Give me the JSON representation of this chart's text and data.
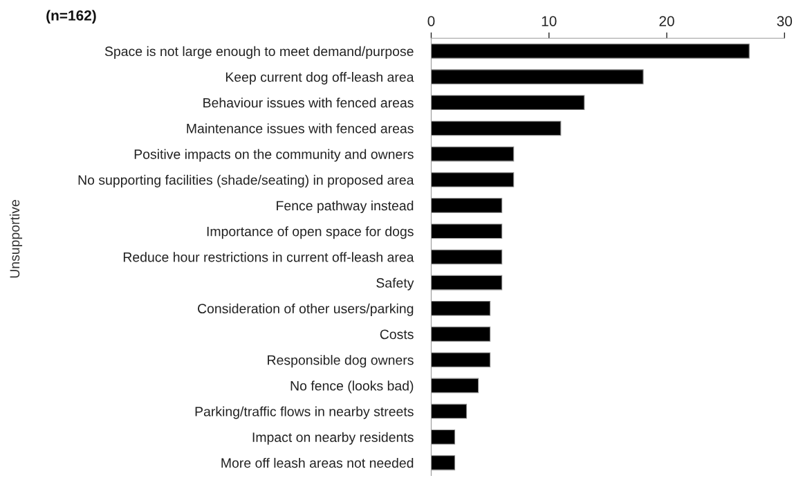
{
  "chart_data": {
    "type": "bar",
    "orientation": "horizontal",
    "ylabel": "Unsupportive",
    "annotations": [
      "(n=162)"
    ],
    "categories": [
      "Space is not large enough to meet demand/purpose",
      "Keep current dog off-leash area",
      "Behaviour issues with fenced areas",
      "Maintenance issues with fenced areas",
      "Positive impacts on the community and owners",
      "No supporting facilities (shade/seating) in proposed area",
      "Fence pathway instead",
      "Importance of open space for dogs",
      "Reduce hour restrictions in current off-leash area",
      "Safety",
      "Consideration of other users/parking",
      "Costs",
      "Responsible dog owners",
      "No fence (looks bad)",
      "Parking/traffic flows in nearby streets",
      "Impact on nearby residents",
      "More off leash areas not needed"
    ],
    "values": [
      27,
      18,
      13,
      11,
      7,
      7,
      6,
      6,
      6,
      6,
      5,
      5,
      5,
      4,
      3,
      2,
      2
    ],
    "color": "#000000",
    "xlim": [
      0,
      30
    ],
    "xticks": [
      0,
      10,
      20,
      30
    ],
    "grid": false,
    "legend": false
  }
}
